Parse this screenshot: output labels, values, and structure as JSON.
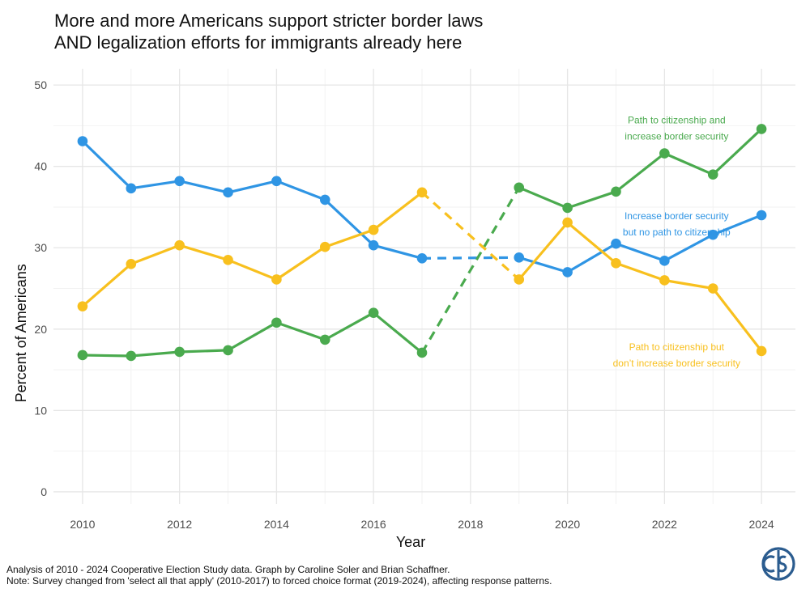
{
  "title_lines": [
    "More and more Americans support stricter border laws",
    "AND legalization efforts for immigrants already here"
  ],
  "caption_lines": [
    "Analysis of 2010 - 2024 Cooperative Election Study data. Graph by Caroline Soler and Brian Schaffner.",
    "Note: Survey changed from 'select all that apply' (2010-2017) to forced choice format (2019-2024), affecting response patterns."
  ],
  "logo": {
    "icon": "ces-logo-icon",
    "color": "#2b5c8f"
  },
  "chart_data": {
    "type": "line",
    "xlabel": "Year",
    "ylabel": "Percent of Americans",
    "xlim": [
      2009.4,
      2024.7
    ],
    "ylim": [
      -1.5,
      52
    ],
    "xticks": [
      2010,
      2012,
      2014,
      2016,
      2018,
      2020,
      2022,
      2024
    ],
    "yticks": [
      0,
      10,
      20,
      30,
      40,
      50
    ],
    "grid": true,
    "legend": "none",
    "break_between": [
      2017,
      2019
    ],
    "series": [
      {
        "name": "Increase border security but no path to citizenship",
        "label_lines": [
          "Increase border security",
          "but no path to citizenship"
        ],
        "label_at": {
          "x": 2022.25,
          "y": [
            33.5,
            31.5
          ]
        },
        "color": "#2f95e4",
        "x": [
          2010,
          2011,
          2012,
          2013,
          2014,
          2015,
          2016,
          2017,
          2019,
          2020,
          2021,
          2022,
          2023,
          2024
        ],
        "values": [
          43.1,
          37.3,
          38.2,
          36.8,
          38.2,
          35.9,
          30.3,
          28.7,
          28.8,
          27.0,
          30.5,
          28.4,
          31.6,
          34.0
        ]
      },
      {
        "name": "Path to citizenship but don't increase border security",
        "label_lines": [
          "Path to citizenship but",
          "don’t increase border security"
        ],
        "label_at": {
          "x": 2022.25,
          "y": [
            17.4,
            15.4
          ]
        },
        "color": "#f8c01e",
        "x": [
          2010,
          2011,
          2012,
          2013,
          2014,
          2015,
          2016,
          2017,
          2019,
          2020,
          2021,
          2022,
          2023,
          2024
        ],
        "values": [
          22.8,
          28.0,
          30.3,
          28.5,
          26.1,
          30.1,
          32.2,
          36.8,
          26.1,
          33.1,
          28.1,
          26.0,
          25.0,
          17.3
        ]
      },
      {
        "name": "Path to citizenship and increase border security",
        "label_lines": [
          "Path to citizenship and",
          "increase border security"
        ],
        "label_at": {
          "x": 2022.25,
          "y": [
            45.3,
            43.3
          ]
        },
        "color": "#4aaa4e",
        "x": [
          2010,
          2011,
          2012,
          2013,
          2014,
          2015,
          2016,
          2017,
          2019,
          2020,
          2021,
          2022,
          2023,
          2024
        ],
        "values": [
          16.8,
          16.7,
          17.2,
          17.4,
          20.8,
          18.7,
          22.0,
          17.1,
          37.4,
          34.9,
          36.9,
          41.6,
          39.0,
          44.6
        ]
      }
    ]
  }
}
